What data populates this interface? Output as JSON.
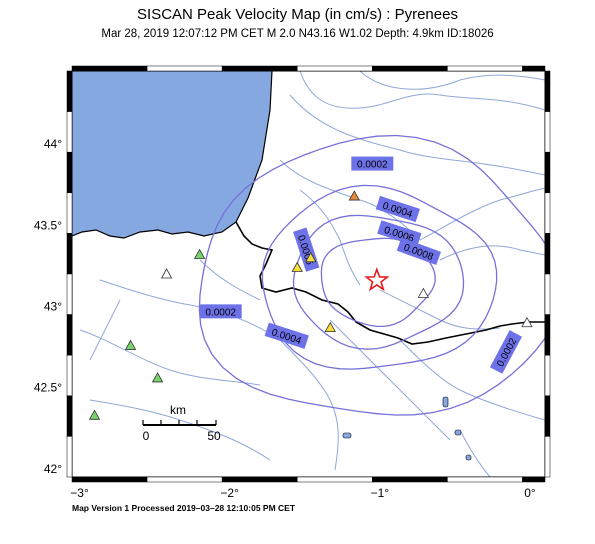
{
  "title": "SISCAN Peak Velocity Map (in cm/s) : Pyrenees",
  "subtitle": "Mar 28, 2019 12:07:12 PM CET   M 2.0    N43.16 W1.02   Depth: 4.9km   ID:18026",
  "footer": "Map Version 1 Processed 2019–03–28 12:10:05 PM CET",
  "colors": {
    "sea": "#86a8e0",
    "rivers": "#8fa8d8",
    "contours": "#7770d8",
    "label_bg": "#6e72e8",
    "epicenter": "#e41a1c",
    "station_green": "#79d36a",
    "station_yellow": "#f5dd3c",
    "station_orange": "#e08a3a",
    "station_white": "#ffffff",
    "border": "#000000"
  },
  "map": {
    "lat_ticks": [
      "44°",
      "43.5°",
      "43°",
      "42.5°",
      "42°"
    ],
    "lon_ticks": [
      "−3°",
      "−2°",
      "−1°",
      "0°"
    ],
    "lon_range": [
      -3.05,
      0.1
    ],
    "lat_range": [
      41.95,
      44.45
    ],
    "epicenter": {
      "lon": -1.02,
      "lat": 43.16
    },
    "scale_bar": {
      "label": "km",
      "start": "0",
      "end": "50"
    },
    "contours": [
      {
        "value": "0.0002",
        "radius_km": 95
      },
      {
        "value": "0.0004",
        "radius_km": 62
      },
      {
        "value": "0.0006",
        "radius_km": 45
      },
      {
        "value": "0.0008",
        "radius_km": 30
      }
    ],
    "contour_labels": [
      {
        "text": "0.0002",
        "lon": -1.05,
        "lat": 43.88,
        "angle": 0
      },
      {
        "text": "0.0004",
        "lon": -0.88,
        "lat": 43.6,
        "angle": 18
      },
      {
        "text": "0.0006",
        "lon": -0.87,
        "lat": 43.45,
        "angle": 18
      },
      {
        "text": "0.0008",
        "lon": -0.74,
        "lat": 43.34,
        "angle": 20
      },
      {
        "text": "0.0006",
        "lon": -1.49,
        "lat": 43.35,
        "angle": 72
      },
      {
        "text": "0.0002",
        "lon": -2.06,
        "lat": 42.97,
        "angle": 0
      },
      {
        "text": "0.0004",
        "lon": -1.62,
        "lat": 42.82,
        "angle": 18
      },
      {
        "text": "0.0002",
        "lon": -0.16,
        "lat": 42.72,
        "angle": -62
      }
    ],
    "stations": [
      {
        "lon": -2.2,
        "lat": 43.32,
        "type": "green"
      },
      {
        "lon": -2.66,
        "lat": 42.76,
        "type": "green"
      },
      {
        "lon": -2.48,
        "lat": 42.56,
        "type": "green"
      },
      {
        "lon": -2.9,
        "lat": 42.33,
        "type": "green"
      },
      {
        "lon": -1.55,
        "lat": 43.24,
        "type": "yellow"
      },
      {
        "lon": -1.46,
        "lat": 43.3,
        "type": "yellow"
      },
      {
        "lon": -1.33,
        "lat": 42.87,
        "type": "yellow"
      },
      {
        "lon": -1.17,
        "lat": 43.68,
        "type": "orange"
      },
      {
        "lon": -2.42,
        "lat": 43.2,
        "type": "white"
      },
      {
        "lon": -0.71,
        "lat": 43.08,
        "type": "white"
      },
      {
        "lon": -0.02,
        "lat": 42.9,
        "type": "white"
      }
    ]
  }
}
